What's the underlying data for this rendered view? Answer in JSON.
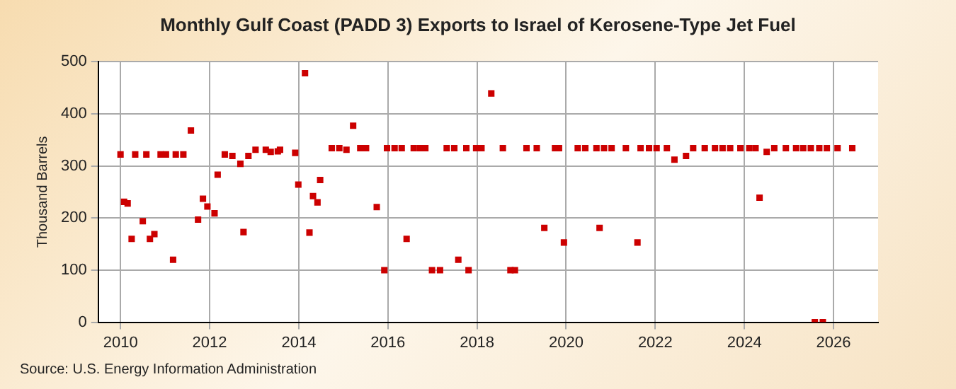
{
  "chart_data": {
    "type": "scatter",
    "title": "Monthly Gulf Coast (PADD 3) Exports to Israel of Kerosene-Type Jet Fuel",
    "ylabel": "Thousand Barrels",
    "annotations": [
      "Source: U.S. Energy Information Administration"
    ],
    "x": [
      2010.0,
      2010.08,
      2010.16,
      2010.25,
      2010.33,
      2010.5,
      2010.58,
      2010.66,
      2010.76,
      2010.9,
      2011.02,
      2011.18,
      2011.24,
      2011.41,
      2011.58,
      2011.74,
      2011.85,
      2011.95,
      2012.11,
      2012.18,
      2012.34,
      2012.51,
      2012.69,
      2012.76,
      2012.87,
      2013.03,
      2013.26,
      2013.37,
      2013.53,
      2013.58,
      2013.92,
      2013.99,
      2014.14,
      2014.24,
      2014.32,
      2014.42,
      2014.48,
      2014.74,
      2014.91,
      2015.07,
      2015.22,
      2015.38,
      2015.51,
      2015.75,
      2015.92,
      2015.98,
      2016.15,
      2016.31,
      2016.42,
      2016.58,
      2016.72,
      2016.84,
      2016.99,
      2017.17,
      2017.32,
      2017.49,
      2017.58,
      2017.76,
      2017.81,
      2017.98,
      2018.1,
      2018.32,
      2018.58,
      2018.75,
      2018.85,
      2019.11,
      2019.34,
      2019.51,
      2019.75,
      2019.84,
      2019.95,
      2020.26,
      2020.43,
      2020.68,
      2020.75,
      2020.85,
      2021.02,
      2021.34,
      2021.6,
      2021.67,
      2021.86,
      2022.03,
      2022.26,
      2022.43,
      2022.69,
      2022.85,
      2023.11,
      2023.34,
      2023.51,
      2023.68,
      2023.91,
      2024.11,
      2024.25,
      2024.34,
      2024.5,
      2024.67,
      2024.93,
      2025.16,
      2025.32,
      2025.49,
      2025.58,
      2025.68,
      2025.76,
      2025.85,
      2026.09,
      2026.42
    ],
    "series": [
      {
        "color": "#cc0000",
        "values": [
          322,
          231,
          228,
          160,
          322,
          194,
          322,
          160,
          169,
          322,
          322,
          120,
          322,
          322,
          368,
          197,
          237,
          222,
          209,
          283,
          322,
          319,
          304,
          173,
          319,
          331,
          331,
          327,
          328,
          331,
          325,
          264,
          478,
          172,
          242,
          230,
          273,
          334,
          334,
          331,
          377,
          334,
          334,
          221,
          100,
          334,
          334,
          334,
          160,
          334,
          334,
          334,
          100,
          100,
          334,
          334,
          120,
          334,
          100,
          334,
          334,
          439,
          334,
          100,
          100,
          334,
          334,
          181,
          334,
          334,
          153,
          334,
          334,
          334,
          181,
          334,
          334,
          334,
          153,
          334,
          334,
          334,
          334,
          312,
          319,
          334,
          334,
          334,
          334,
          334,
          334,
          334,
          334,
          239,
          327,
          334,
          334,
          334,
          334,
          334,
          0,
          334,
          0,
          334,
          334,
          334
        ]
      }
    ],
    "xlim": [
      2009.5,
      2027
    ],
    "xticks": [
      2010,
      2012,
      2014,
      2016,
      2018,
      2020,
      2022,
      2024,
      2026
    ],
    "ylim": [
      0,
      500
    ],
    "yticks": [
      0,
      100,
      200,
      300,
      400,
      500
    ],
    "grid": true,
    "marker": "square",
    "legend": false
  }
}
